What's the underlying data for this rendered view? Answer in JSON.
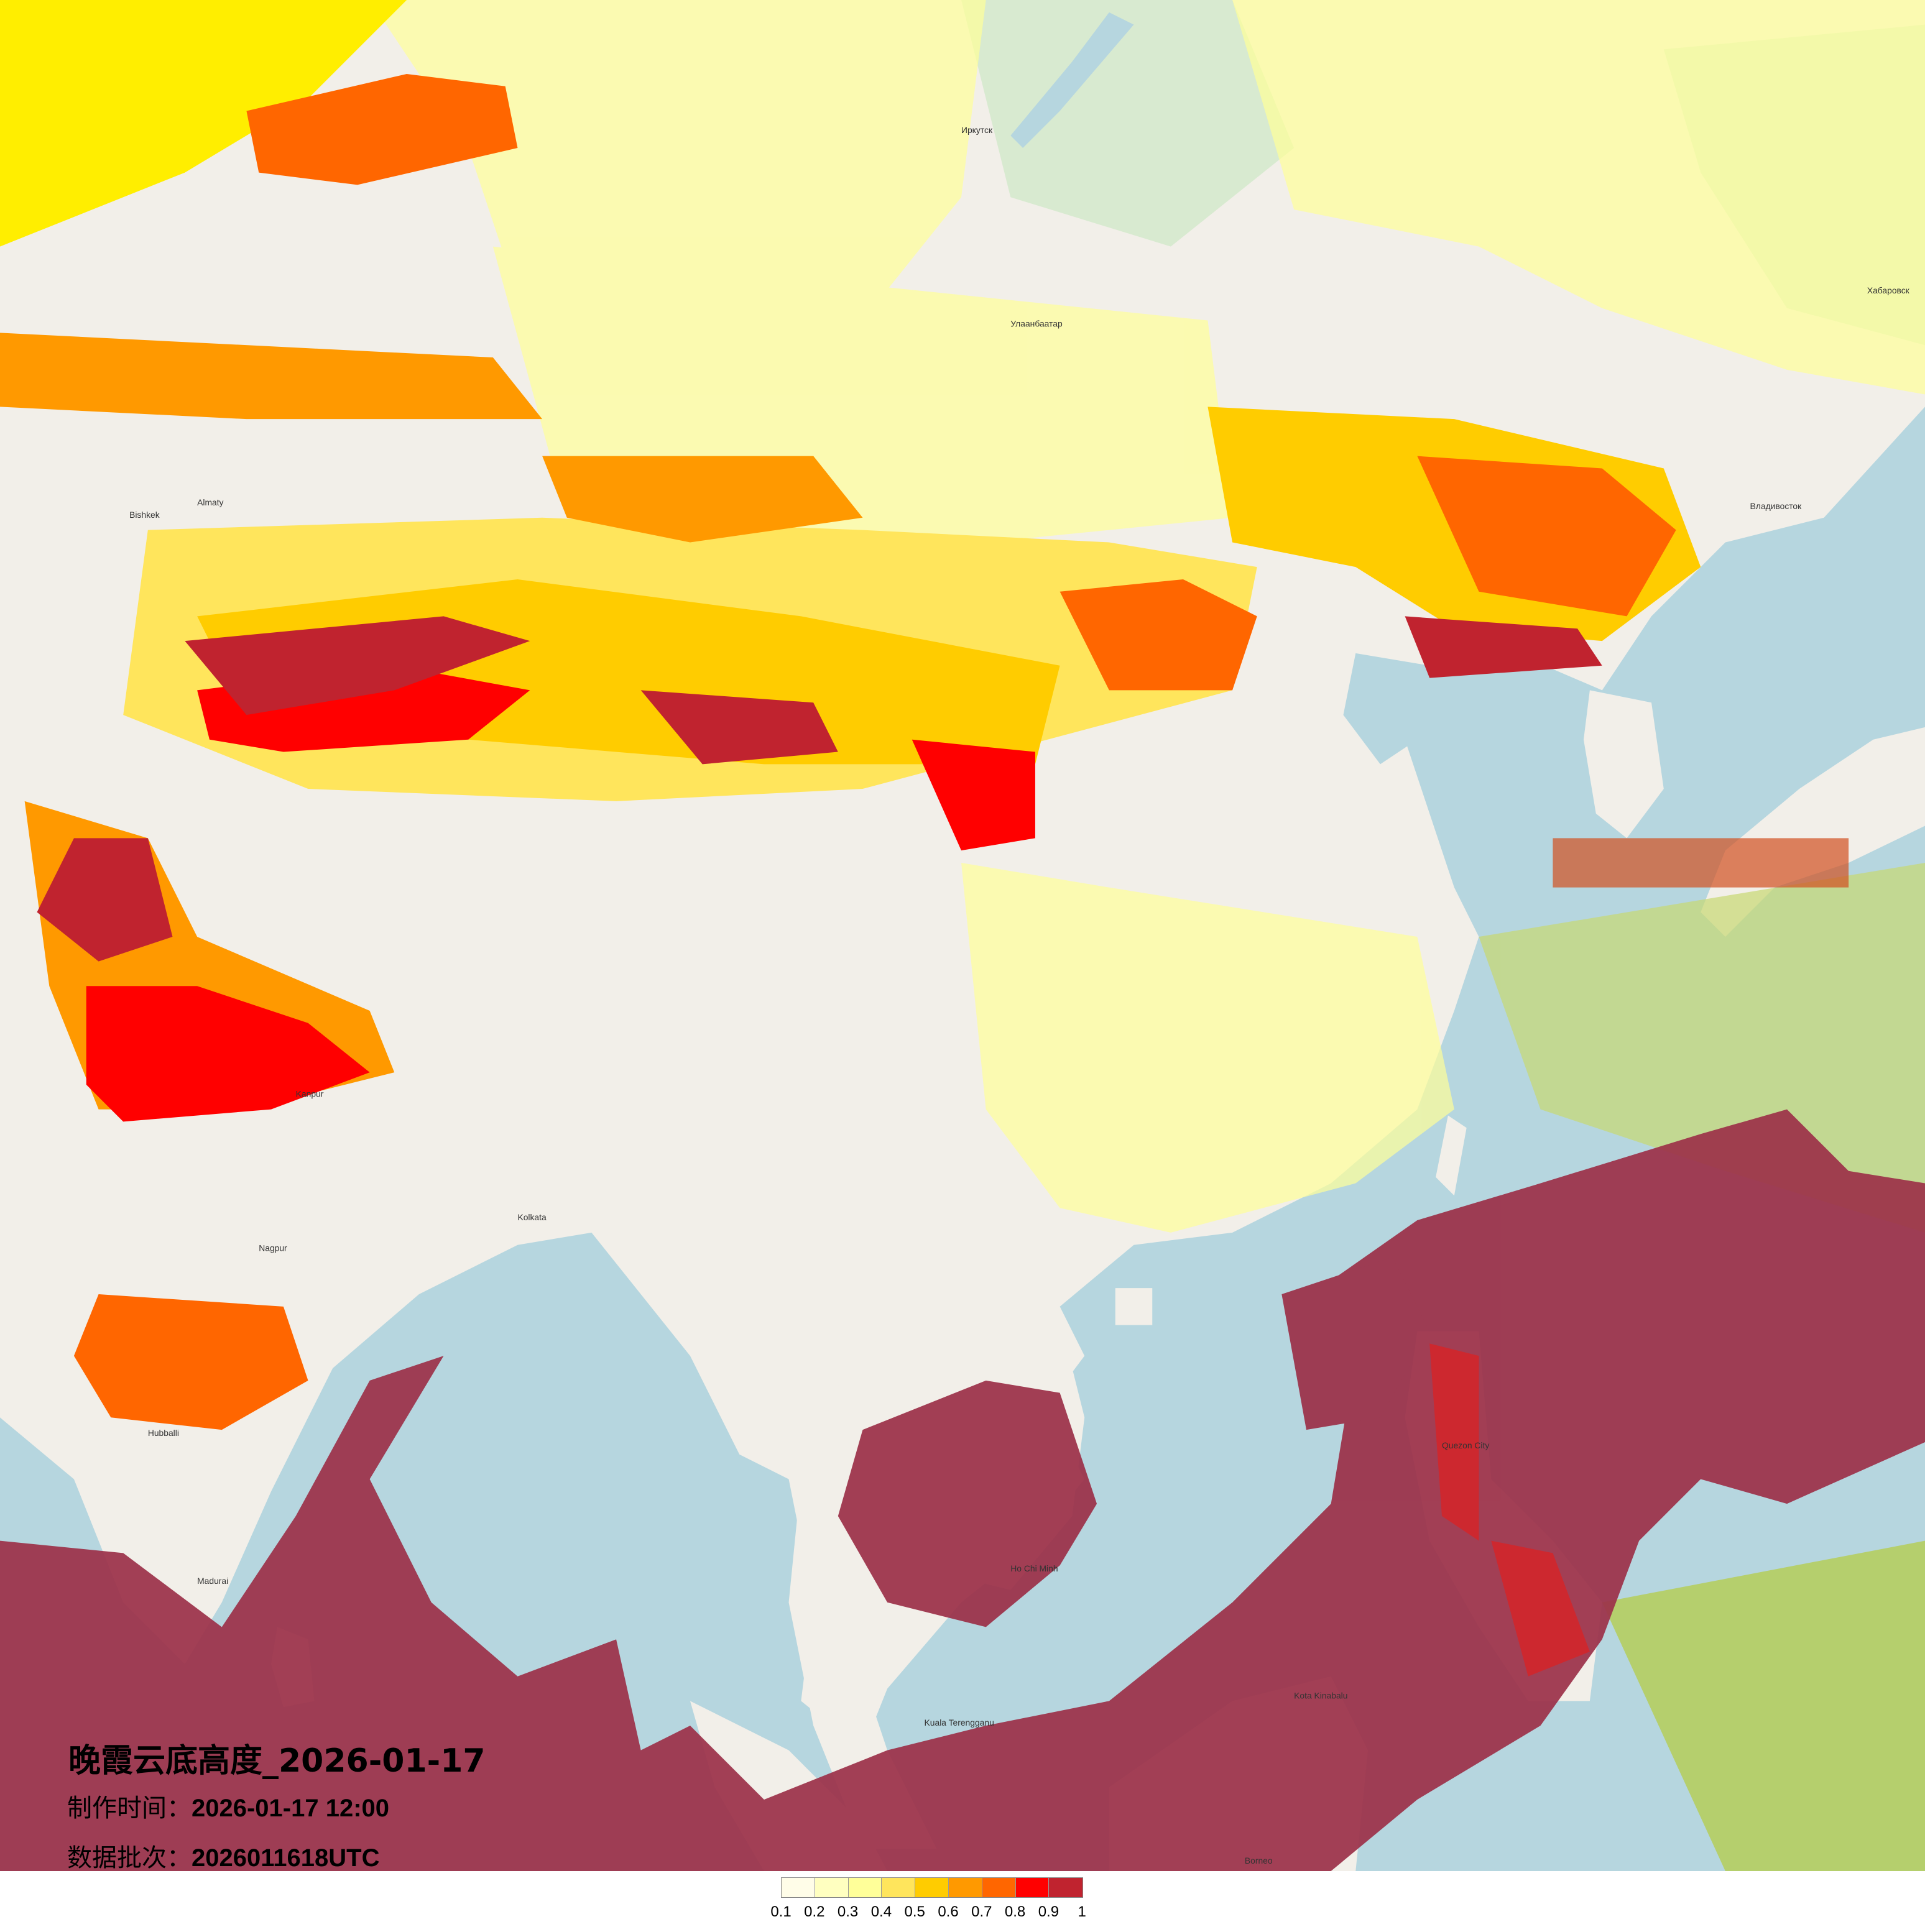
{
  "title": "晚霞云底高度_2026-01-17",
  "production_time": {
    "label": "制作时间：",
    "value": "2026-01-17 12:00"
  },
  "data_batch": {
    "label": "数据批次：",
    "value": "2026011618UTC"
  },
  "legend": {
    "colors": [
      "#fffde8",
      "#ffffc0",
      "#ffff99",
      "#ffe55c",
      "#ffcc00",
      "#ff9900",
      "#ff6600",
      "#ff0000",
      "#c0232f"
    ],
    "ticks": [
      "0.1",
      "0.2",
      "0.3",
      "0.4",
      "0.5",
      "0.6",
      "0.7",
      "0.8",
      "0.9",
      "1"
    ]
  },
  "map": {
    "land_color": "#f2efe9",
    "ocean_color": "#b6d6df",
    "places": [
      "Улаанбаатар",
      "Иркутск",
      "Bishkek",
      "Almaty",
      "Kanpur",
      "Kolkata",
      "Nagpur",
      "Hubballi",
      "Madurai",
      "Ho Chi Minh",
      "Kuala Terengganu",
      "Kota Kinabalu",
      "Quezon City",
      "Borneo",
      "Хабаровск",
      "Владивосток"
    ]
  }
}
